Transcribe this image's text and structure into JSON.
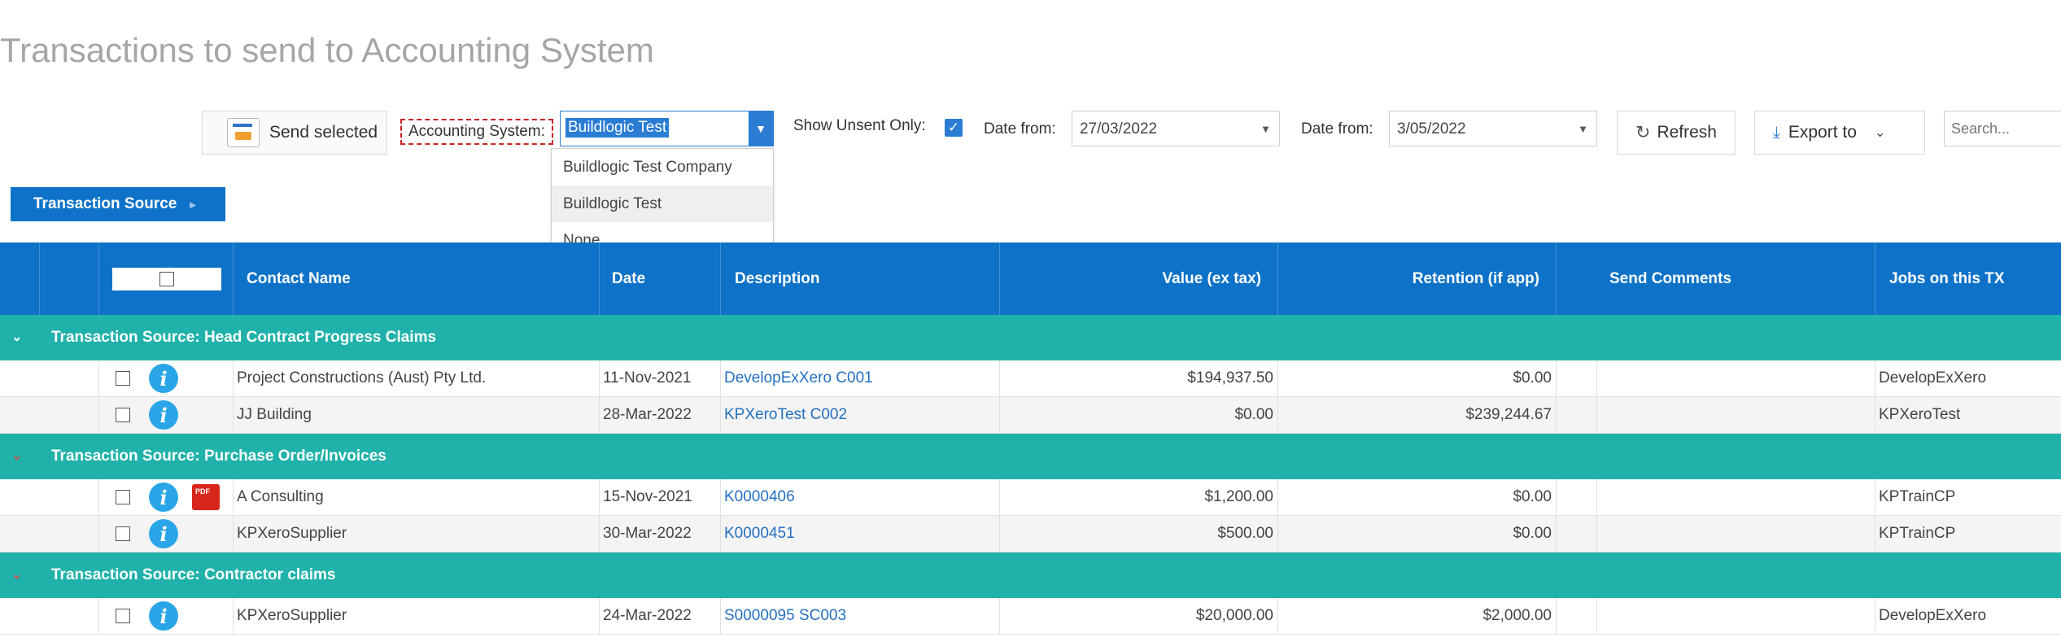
{
  "page": {
    "title": "Transactions to send to Accounting System"
  },
  "toolbar": {
    "send_selected": "Send selected",
    "accounting_label": "Accounting System:",
    "accounting_value": "Buildlogic Test",
    "accounting_options": [
      "Buildlogic Test Company",
      "Buildlogic Test",
      "None"
    ],
    "show_unsent_label": "Show Unsent Only:",
    "show_unsent_checked": true,
    "date_from_label": "Date from:",
    "date_from_value": "27/03/2022",
    "date_to_label": "Date from:",
    "date_to_value": "3/05/2022",
    "refresh_label": "Refresh",
    "export_label": "Export to",
    "search_placeholder": "Search..."
  },
  "grouping": {
    "chip_label": "Transaction Source"
  },
  "grid": {
    "columns": {
      "contact": "Contact Name",
      "date": "Date",
      "description": "Description",
      "value": "Value (ex tax)",
      "retention": "Retention (if app)",
      "comments": "Send Comments",
      "jobs": "Jobs on this TX"
    },
    "groups": [
      {
        "title": "Transaction Source: Head Contract Progress Claims",
        "rows": [
          {
            "contact": "Project Constructions (Aust) Pty Ltd.",
            "date": "11-Nov-2021",
            "description": "DevelopExXero C001",
            "value": "$194,937.50",
            "retention": "$0.00",
            "comments": "",
            "jobs": "DevelopExXero",
            "pdf": false
          },
          {
            "contact": "JJ Building",
            "date": "28-Mar-2022",
            "description": "KPXeroTest C002",
            "value": "$0.00",
            "retention": "$239,244.67",
            "comments": "",
            "jobs": "KPXeroTest",
            "pdf": false
          }
        ]
      },
      {
        "title": "Transaction Source: Purchase Order/Invoices",
        "rows": [
          {
            "contact": "A Consulting",
            "date": "15-Nov-2021",
            "description": "K0000406",
            "value": "$1,200.00",
            "retention": "$0.00",
            "comments": "",
            "jobs": "KPTrainCP",
            "pdf": true
          },
          {
            "contact": "KPXeroSupplier",
            "date": "30-Mar-2022",
            "description": "K0000451",
            "value": "$500.00",
            "retention": "$0.00",
            "comments": "",
            "jobs": "KPTrainCP",
            "pdf": false
          }
        ]
      },
      {
        "title": "Transaction Source: Contractor claims",
        "rows": [
          {
            "contact": "KPXeroSupplier",
            "date": "24-Mar-2022",
            "description": "S0000095 SC003",
            "value": "$20,000.00",
            "retention": "$2,000.00",
            "comments": "",
            "jobs": "DevelopExXero",
            "pdf": false
          }
        ]
      }
    ]
  },
  "icons": {
    "info": "info-icon",
    "pdf": "pdf-file-icon",
    "refresh": "refresh-icon",
    "export": "download-icon",
    "expand": "chevron-down-icon"
  },
  "colors": {
    "header": "#0e73c8",
    "group": "#20b2aa",
    "link": "#2470c2",
    "accent": "#2b7cd3"
  }
}
